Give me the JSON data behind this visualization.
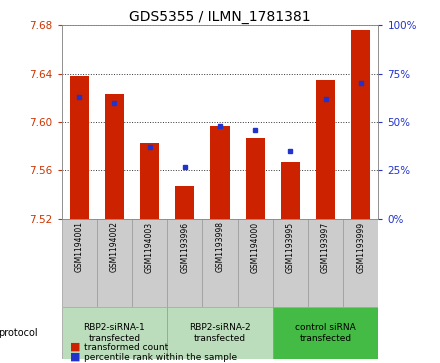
{
  "title": "GDS5355 / ILMN_1781381",
  "samples": [
    "GSM1194001",
    "GSM1194002",
    "GSM1194003",
    "GSM1193996",
    "GSM1193998",
    "GSM1194000",
    "GSM1193995",
    "GSM1193997",
    "GSM1193999"
  ],
  "transformed_count": [
    7.638,
    7.623,
    7.583,
    7.547,
    7.597,
    7.587,
    7.567,
    7.635,
    7.676
  ],
  "percentile_rank": [
    63,
    60,
    37,
    27,
    48,
    46,
    35,
    62,
    70
  ],
  "y_min": 7.52,
  "y_max": 7.68,
  "y_ticks": [
    7.52,
    7.56,
    7.6,
    7.64,
    7.68
  ],
  "y2_ticks": [
    0,
    25,
    50,
    75,
    100
  ],
  "bar_color": "#cc2200",
  "dot_color": "#2233cc",
  "groups": [
    {
      "label": "RBP2-siRNA-1\ntransfected",
      "start": 0,
      "end": 3,
      "color": "#bbddbb"
    },
    {
      "label": "RBP2-siRNA-2\ntransfected",
      "start": 3,
      "end": 6,
      "color": "#bbddbb"
    },
    {
      "label": "control siRNA\ntransfected",
      "start": 6,
      "end": 9,
      "color": "#44bb44"
    }
  ],
  "protocol_label": "protocol",
  "legend_entries": [
    "transformed count",
    "percentile rank within the sample"
  ],
  "background_color": "#ffffff",
  "plot_bg_color": "#ffffff",
  "grid_color": "#000000",
  "tick_color_left": "#cc3300",
  "tick_color_right": "#2233cc",
  "sample_box_color": "#cccccc"
}
